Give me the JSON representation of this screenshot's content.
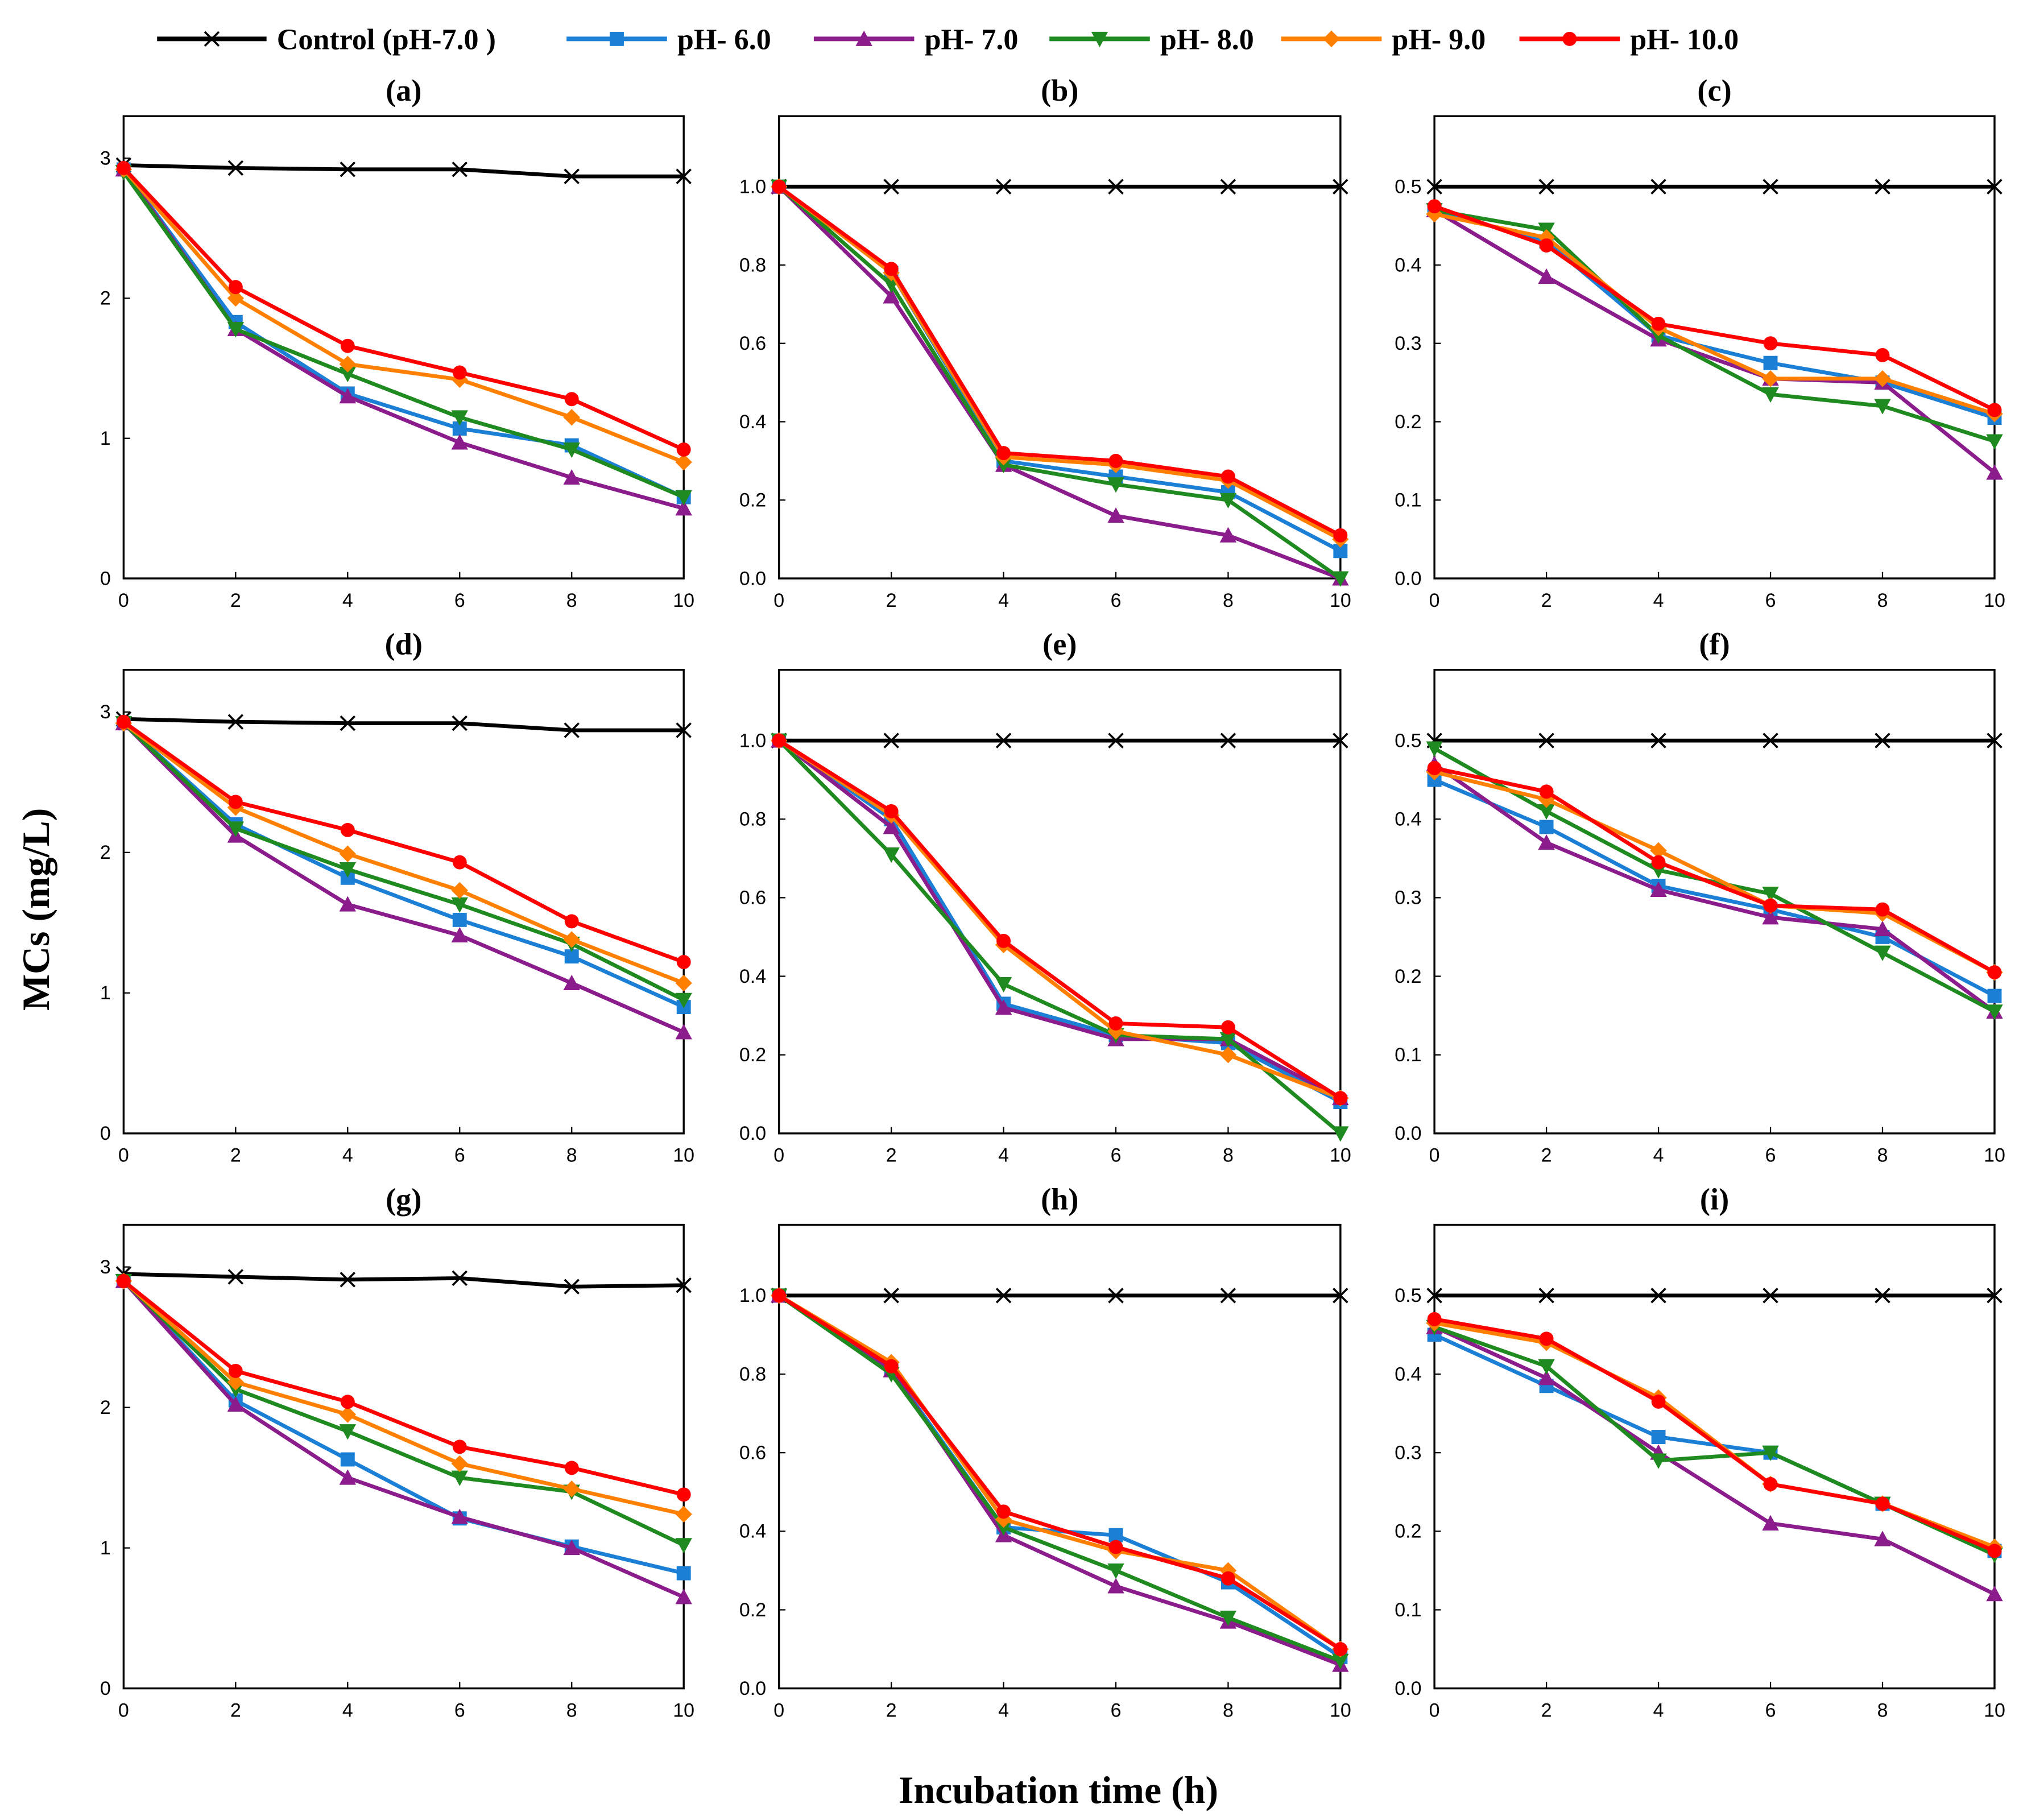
{
  "figure": {
    "ylabel": "MCs (mg/L)",
    "xlabel": "Incubation time (h)"
  },
  "legend": {
    "placement": "top",
    "entries": [
      {
        "label": "Control (pH-7.0  )",
        "color": "#000000",
        "marker": "x-icon"
      },
      {
        "label": "pH- 6.0",
        "color": "#1b7fd6",
        "marker": "square-icon"
      },
      {
        "label": "pH- 7.0",
        "color": "#8b1c8b",
        "marker": "triangle-up-icon"
      },
      {
        "label": "pH- 8.0",
        "color": "#1f8a1f",
        "marker": "triangle-down-icon"
      },
      {
        "label": "pH- 9.0",
        "color": "#ff8000",
        "marker": "diamond-icon"
      },
      {
        "label": "pH- 10.0",
        "color": "#ff0000",
        "marker": "circle-icon"
      }
    ]
  },
  "chart_data": [
    {
      "type": "line",
      "title": "(a)",
      "x": [
        0,
        2,
        4,
        6,
        8,
        10
      ],
      "xlim": [
        0,
        10
      ],
      "xticks": [
        "0",
        "2",
        "4",
        "6",
        "8",
        "10"
      ],
      "ylim": [
        0,
        3.3
      ],
      "yticks": [
        0,
        1,
        2,
        3
      ],
      "ytick_labels": [
        "0",
        "1",
        "2",
        "3"
      ],
      "series": [
        {
          "name": "Control (pH-7.0)",
          "values": [
            2.95,
            2.93,
            2.92,
            2.92,
            2.87,
            2.87
          ]
        },
        {
          "name": "pH- 6.0",
          "values": [
            2.92,
            1.83,
            1.32,
            1.07,
            0.95,
            0.58
          ]
        },
        {
          "name": "pH- 7.0",
          "values": [
            2.92,
            1.78,
            1.3,
            0.97,
            0.72,
            0.5
          ]
        },
        {
          "name": "pH- 8.0",
          "values": [
            2.9,
            1.78,
            1.46,
            1.15,
            0.92,
            0.58
          ]
        },
        {
          "name": "pH- 9.0",
          "values": [
            2.92,
            2.0,
            1.53,
            1.42,
            1.15,
            0.83
          ]
        },
        {
          "name": "pH- 10.0",
          "values": [
            2.93,
            2.08,
            1.66,
            1.47,
            1.28,
            0.92
          ]
        }
      ]
    },
    {
      "type": "line",
      "title": "(b)",
      "x": [
        0,
        2,
        4,
        6,
        8,
        10
      ],
      "xlim": [
        0,
        10
      ],
      "xticks": [
        "0",
        "2",
        "4",
        "6",
        "8",
        "10"
      ],
      "ylim": [
        0,
        1.18
      ],
      "yticks": [
        0,
        0.2,
        0.4,
        0.6,
        0.8,
        1.0
      ],
      "ytick_labels": [
        "0.0",
        "0.2",
        "0.4",
        "0.6",
        "0.8",
        "1.0"
      ],
      "series": [
        {
          "name": "Control (pH-7.0)",
          "values": [
            1.0,
            1.0,
            1.0,
            1.0,
            1.0,
            1.0
          ]
        },
        {
          "name": "pH- 6.0",
          "values": [
            1.0,
            0.78,
            0.3,
            0.26,
            0.22,
            0.07
          ]
        },
        {
          "name": "pH- 7.0",
          "values": [
            1.0,
            0.72,
            0.29,
            0.16,
            0.11,
            0.0
          ]
        },
        {
          "name": "pH- 8.0",
          "values": [
            1.0,
            0.75,
            0.29,
            0.24,
            0.2,
            0.0
          ]
        },
        {
          "name": "pH- 9.0",
          "values": [
            1.0,
            0.78,
            0.31,
            0.29,
            0.25,
            0.1
          ]
        },
        {
          "name": "pH- 10.0",
          "values": [
            1.0,
            0.79,
            0.32,
            0.3,
            0.26,
            0.11
          ]
        }
      ]
    },
    {
      "type": "line",
      "title": "(c)",
      "x": [
        0,
        2,
        4,
        6,
        8,
        10
      ],
      "xlim": [
        0,
        10
      ],
      "xticks": [
        "0",
        "2",
        "4",
        "6",
        "8",
        "10"
      ],
      "ylim": [
        0,
        0.59
      ],
      "yticks": [
        0,
        0.1,
        0.2,
        0.3,
        0.4,
        0.5
      ],
      "ytick_labels": [
        "0.0",
        "0.1",
        "0.2",
        "0.3",
        "0.4",
        "0.5"
      ],
      "series": [
        {
          "name": "Control (pH-7.0)",
          "values": [
            0.5,
            0.5,
            0.5,
            0.5,
            0.5,
            0.5
          ]
        },
        {
          "name": "pH- 6.0",
          "values": [
            0.47,
            0.43,
            0.31,
            0.275,
            0.25,
            0.205
          ]
        },
        {
          "name": "pH- 7.0",
          "values": [
            0.47,
            0.385,
            0.305,
            0.255,
            0.25,
            0.135
          ]
        },
        {
          "name": "pH- 8.0",
          "values": [
            0.47,
            0.445,
            0.31,
            0.235,
            0.22,
            0.175
          ]
        },
        {
          "name": "pH- 9.0",
          "values": [
            0.465,
            0.435,
            0.32,
            0.255,
            0.255,
            0.21
          ]
        },
        {
          "name": "pH- 10.0",
          "values": [
            0.475,
            0.425,
            0.325,
            0.3,
            0.285,
            0.215
          ]
        }
      ]
    },
    {
      "type": "line",
      "title": "(d)",
      "x": [
        0,
        2,
        4,
        6,
        8,
        10
      ],
      "xlim": [
        0,
        10
      ],
      "xticks": [
        "0",
        "2",
        "4",
        "6",
        "8",
        "10"
      ],
      "ylim": [
        0,
        3.3
      ],
      "yticks": [
        0,
        1,
        2,
        3
      ],
      "ytick_labels": [
        "0",
        "1",
        "2",
        "3"
      ],
      "series": [
        {
          "name": "Control (pH-7.0)",
          "values": [
            2.95,
            2.93,
            2.92,
            2.92,
            2.87,
            2.87
          ]
        },
        {
          "name": "pH- 6.0",
          "values": [
            2.92,
            2.2,
            1.82,
            1.52,
            1.26,
            0.9
          ]
        },
        {
          "name": "pH- 7.0",
          "values": [
            2.92,
            2.12,
            1.63,
            1.41,
            1.07,
            0.72
          ]
        },
        {
          "name": "pH- 8.0",
          "values": [
            2.92,
            2.17,
            1.88,
            1.63,
            1.35,
            0.95
          ]
        },
        {
          "name": "pH- 9.0",
          "values": [
            2.92,
            2.32,
            1.99,
            1.73,
            1.38,
            1.07
          ]
        },
        {
          "name": "pH- 10.0",
          "values": [
            2.93,
            2.36,
            2.16,
            1.93,
            1.51,
            1.22
          ]
        }
      ]
    },
    {
      "type": "line",
      "title": "(e)",
      "x": [
        0,
        2,
        4,
        6,
        8,
        10
      ],
      "xlim": [
        0,
        10
      ],
      "xticks": [
        "0",
        "2",
        "4",
        "6",
        "8",
        "10"
      ],
      "ylim": [
        0,
        1.18
      ],
      "yticks": [
        0,
        0.2,
        0.4,
        0.6,
        0.8,
        1.0
      ],
      "ytick_labels": [
        "0.0",
        "0.2",
        "0.4",
        "0.6",
        "0.8",
        "1.0"
      ],
      "series": [
        {
          "name": "Control (pH-7.0)",
          "values": [
            1.0,
            1.0,
            1.0,
            1.0,
            1.0,
            1.0
          ]
        },
        {
          "name": "pH- 6.0",
          "values": [
            1.0,
            0.8,
            0.33,
            0.25,
            0.23,
            0.08
          ]
        },
        {
          "name": "pH- 7.0",
          "values": [
            1.0,
            0.78,
            0.32,
            0.24,
            0.24,
            0.09
          ]
        },
        {
          "name": "pH- 8.0",
          "values": [
            1.0,
            0.71,
            0.38,
            0.25,
            0.24,
            0.0
          ]
        },
        {
          "name": "pH- 9.0",
          "values": [
            1.0,
            0.81,
            0.48,
            0.26,
            0.2,
            0.09
          ]
        },
        {
          "name": "pH- 10.0",
          "values": [
            1.0,
            0.82,
            0.49,
            0.28,
            0.27,
            0.09
          ]
        }
      ]
    },
    {
      "type": "line",
      "title": "(f)",
      "x": [
        0,
        2,
        4,
        6,
        8,
        10
      ],
      "xlim": [
        0,
        10
      ],
      "xticks": [
        "0",
        "2",
        "4",
        "6",
        "8",
        "10"
      ],
      "ylim": [
        0,
        0.59
      ],
      "yticks": [
        0,
        0.1,
        0.2,
        0.3,
        0.4,
        0.5
      ],
      "ytick_labels": [
        "0.0",
        "0.1",
        "0.2",
        "0.3",
        "0.4",
        "0.5"
      ],
      "series": [
        {
          "name": "Control (pH-7.0)",
          "values": [
            0.5,
            0.5,
            0.5,
            0.5,
            0.5,
            0.5
          ]
        },
        {
          "name": "pH- 6.0",
          "values": [
            0.45,
            0.39,
            0.315,
            0.285,
            0.25,
            0.175
          ]
        },
        {
          "name": "pH- 7.0",
          "values": [
            0.47,
            0.37,
            0.31,
            0.275,
            0.26,
            0.155
          ]
        },
        {
          "name": "pH- 8.0",
          "values": [
            0.49,
            0.41,
            0.335,
            0.305,
            0.23,
            0.155
          ]
        },
        {
          "name": "pH- 9.0",
          "values": [
            0.46,
            0.425,
            0.36,
            0.29,
            0.28,
            0.205
          ]
        },
        {
          "name": "pH- 10.0",
          "values": [
            0.465,
            0.435,
            0.345,
            0.29,
            0.285,
            0.205
          ]
        }
      ]
    },
    {
      "type": "line",
      "title": "(g)",
      "x": [
        0,
        2,
        4,
        6,
        8,
        10
      ],
      "xlim": [
        0,
        10
      ],
      "xticks": [
        "0",
        "2",
        "4",
        "6",
        "8",
        "10"
      ],
      "ylim": [
        0,
        3.3
      ],
      "yticks": [
        0,
        1,
        2,
        3
      ],
      "ytick_labels": [
        "0",
        "1",
        "2",
        "3"
      ],
      "series": [
        {
          "name": "Control (pH-7.0)",
          "values": [
            2.95,
            2.93,
            2.91,
            2.92,
            2.86,
            2.87
          ]
        },
        {
          "name": "pH- 6.0",
          "values": [
            2.9,
            2.05,
            1.63,
            1.21,
            1.01,
            0.82
          ]
        },
        {
          "name": "pH- 7.0",
          "values": [
            2.9,
            2.02,
            1.5,
            1.22,
            1.0,
            0.65
          ]
        },
        {
          "name": "pH- 8.0",
          "values": [
            2.9,
            2.13,
            1.83,
            1.5,
            1.4,
            1.02
          ]
        },
        {
          "name": "pH- 9.0",
          "values": [
            2.9,
            2.18,
            1.95,
            1.6,
            1.42,
            1.24
          ]
        },
        {
          "name": "pH- 10.0",
          "values": [
            2.9,
            2.26,
            2.04,
            1.72,
            1.57,
            1.38
          ]
        }
      ]
    },
    {
      "type": "line",
      "title": "(h)",
      "x": [
        0,
        2,
        4,
        6,
        8,
        10
      ],
      "xlim": [
        0,
        10
      ],
      "xticks": [
        "0",
        "2",
        "4",
        "6",
        "8",
        "10"
      ],
      "ylim": [
        0,
        1.18
      ],
      "yticks": [
        0,
        0.2,
        0.4,
        0.6,
        0.8,
        1.0
      ],
      "ytick_labels": [
        "0.0",
        "0.2",
        "0.4",
        "0.6",
        "0.8",
        "1.0"
      ],
      "series": [
        {
          "name": "Control (pH-7.0)",
          "values": [
            1.0,
            1.0,
            1.0,
            1.0,
            1.0,
            1.0
          ]
        },
        {
          "name": "pH- 6.0",
          "values": [
            1.0,
            0.81,
            0.41,
            0.39,
            0.27,
            0.08
          ]
        },
        {
          "name": "pH- 7.0",
          "values": [
            1.0,
            0.81,
            0.39,
            0.26,
            0.17,
            0.06
          ]
        },
        {
          "name": "pH- 8.0",
          "values": [
            1.0,
            0.8,
            0.41,
            0.3,
            0.18,
            0.07
          ]
        },
        {
          "name": "pH- 9.0",
          "values": [
            1.0,
            0.83,
            0.43,
            0.35,
            0.3,
            0.1
          ]
        },
        {
          "name": "pH- 10.0",
          "values": [
            1.0,
            0.82,
            0.45,
            0.36,
            0.28,
            0.1
          ]
        }
      ]
    },
    {
      "type": "line",
      "title": "(i)",
      "x": [
        0,
        2,
        4,
        6,
        8,
        10
      ],
      "xlim": [
        0,
        10
      ],
      "xticks": [
        "0",
        "2",
        "4",
        "6",
        "8",
        "10"
      ],
      "ylim": [
        0,
        0.59
      ],
      "yticks": [
        0,
        0.1,
        0.2,
        0.3,
        0.4,
        0.5
      ],
      "ytick_labels": [
        "0.0",
        "0.1",
        "0.2",
        "0.3",
        "0.4",
        "0.5"
      ],
      "series": [
        {
          "name": "Control (pH-7.0)",
          "values": [
            0.5,
            0.5,
            0.5,
            0.5,
            0.5,
            0.5
          ]
        },
        {
          "name": "pH- 6.0",
          "values": [
            0.45,
            0.385,
            0.32,
            0.3,
            0.235,
            0.175
          ]
        },
        {
          "name": "pH- 7.0",
          "values": [
            0.46,
            0.395,
            0.3,
            0.21,
            0.19,
            0.12
          ]
        },
        {
          "name": "pH- 8.0",
          "values": [
            0.46,
            0.41,
            0.29,
            0.3,
            0.235,
            0.17
          ]
        },
        {
          "name": "pH- 9.0",
          "values": [
            0.465,
            0.44,
            0.37,
            0.26,
            0.235,
            0.18
          ]
        },
        {
          "name": "pH- 10.0",
          "values": [
            0.47,
            0.445,
            0.365,
            0.26,
            0.235,
            0.175
          ]
        }
      ]
    }
  ]
}
